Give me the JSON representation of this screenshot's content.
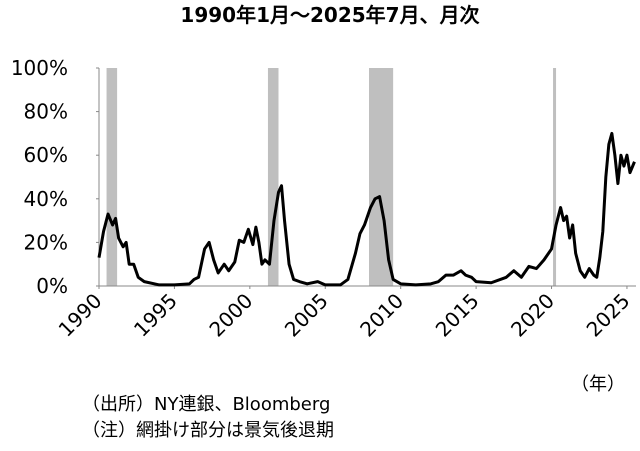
{
  "chart_data": {
    "type": "line",
    "title": "1990年1月～2025年7月、月次",
    "x_unit": "（年）",
    "notes": [
      "（出所）NY連銀、Bloomberg",
      "（注）網掛け部分は景気後退期"
    ],
    "color": "#000000",
    "shade_color": "#bfbfbf",
    "shaded_periods": [
      [
        1990.5,
        1991.2
      ],
      [
        2001.2,
        2001.9
      ],
      [
        2007.9,
        2009.5
      ],
      [
        2020.1,
        2020.3
      ]
    ],
    "x": [
      1990.0,
      1990.3,
      1990.6,
      1990.9,
      1991.1,
      1991.3,
      1991.6,
      1991.8,
      1992.0,
      1992.3,
      1992.6,
      1993.0,
      1994.0,
      1995.0,
      1996.0,
      1996.3,
      1996.6,
      1997.0,
      1997.3,
      1997.6,
      1997.9,
      1998.3,
      1998.6,
      1999.0,
      1999.3,
      1999.6,
      1999.9,
      2000.2,
      2000.4,
      2000.6,
      2000.8,
      2001.0,
      2001.3,
      2001.6,
      2001.9,
      2002.1,
      2002.3,
      2002.6,
      2002.9,
      2003.3,
      2003.8,
      2004.5,
      2005.0,
      2006.0,
      2006.5,
      2007.0,
      2007.3,
      2007.6,
      2008.0,
      2008.3,
      2008.6,
      2008.9,
      2009.2,
      2009.5,
      2010.0,
      2011.0,
      2012.0,
      2012.5,
      2013.0,
      2013.5,
      2014.0,
      2014.3,
      2014.7,
      2015.0,
      2016.0,
      2017.0,
      2017.5,
      2018.0,
      2018.5,
      2019.0,
      2019.5,
      2020.0,
      2020.3,
      2020.6,
      2020.8,
      2021.0,
      2021.2,
      2021.4,
      2021.6,
      2021.9,
      2022.2,
      2022.5,
      2022.8,
      2023.0,
      2023.2,
      2023.4,
      2023.6,
      2023.8,
      2024.0,
      2024.2,
      2024.4,
      2024.6,
      2024.8,
      2025.0,
      2025.2,
      2025.5
    ],
    "values": [
      13,
      25,
      33,
      28,
      31,
      22,
      18,
      20,
      10,
      10,
      4,
      2,
      0.5,
      0.5,
      1,
      3,
      4,
      17,
      20,
      12,
      6,
      10,
      7,
      11,
      21,
      20,
      26,
      19,
      27,
      20,
      10,
      12,
      10,
      30,
      43,
      46,
      30,
      10,
      3,
      2,
      1,
      2,
      0.5,
      0.5,
      3,
      15,
      24,
      28,
      36,
      40,
      41,
      30,
      12,
      3,
      1,
      0.5,
      1,
      2,
      5,
      5,
      7,
      5,
      4,
      2,
      1.5,
      4,
      7,
      4,
      9,
      8,
      12,
      17,
      28,
      36,
      30,
      32,
      22,
      28,
      15,
      7,
      4,
      8,
      5,
      4,
      13,
      25,
      50,
      65,
      70,
      60,
      47,
      60,
      55,
      60,
      52,
      57
    ],
    "xlim": [
      1990,
      2025.6
    ],
    "xticks": [
      1990,
      1995,
      2000,
      2005,
      2010,
      2015,
      2020,
      2025
    ],
    "ylim": [
      0,
      100
    ],
    "yticks": [
      {
        "value": 0,
        "label": "0%"
      },
      {
        "value": 20,
        "label": "20%"
      },
      {
        "value": 40,
        "label": "40%"
      },
      {
        "value": 60,
        "label": "60%"
      },
      {
        "value": 80,
        "label": "80%"
      },
      {
        "value": 100,
        "label": "100%"
      }
    ]
  }
}
